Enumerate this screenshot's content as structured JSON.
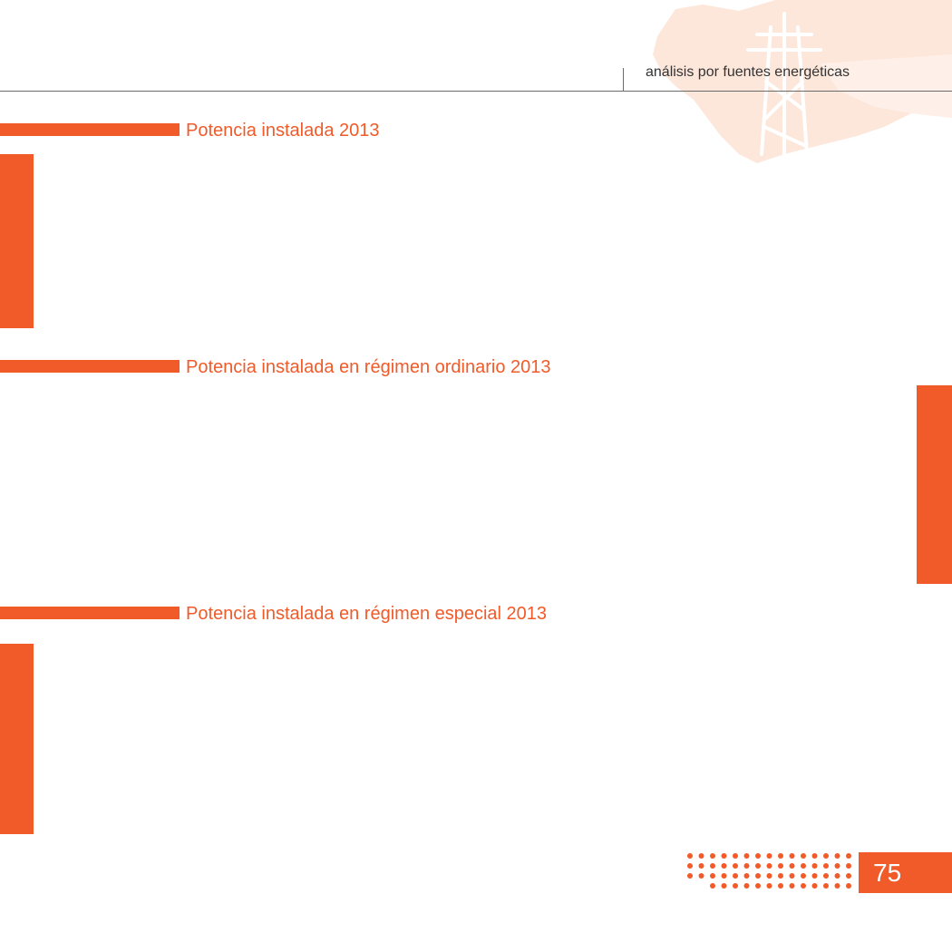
{
  "header": {
    "section_title": "análisis por fuentes energéticas"
  },
  "sections": [
    {
      "title": "Potencia instalada 2013"
    },
    {
      "title": "Potencia  instalada en régimen ordinario 2013"
    },
    {
      "title": "Potencia instalada en régimen especial 2013"
    }
  ],
  "footer": {
    "page_number": "75"
  },
  "decorations": {
    "header_illustration": "transmission-tower-map-icon",
    "dots_pattern": "dot-grid-icon"
  },
  "colors": {
    "accent": "#f15a29",
    "map_tint": "#fde3d6",
    "header_text": "#333333"
  }
}
